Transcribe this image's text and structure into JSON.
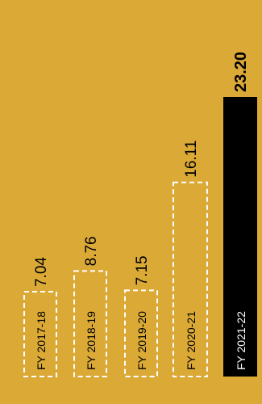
{
  "colors": {
    "background": "#DBA936",
    "highlight_bar": "#000000",
    "highlight_label": "#FFFFFF",
    "dashed_outline": "#FFFFFF",
    "text": "#000000"
  },
  "chart_data": {
    "type": "bar",
    "orientation": "vertical",
    "categories": [
      "FY 2017-18",
      "FY 2018-19",
      "FY 2019-20",
      "FY 2020-21",
      "FY 2021-22"
    ],
    "values": [
      7.04,
      8.76,
      7.15,
      16.11,
      23.2
    ],
    "value_labels": [
      "7.04",
      "8.76",
      "7.15",
      "16.11",
      "23.20"
    ],
    "highlight_index": 4,
    "ylim": [
      0,
      23.2
    ],
    "title": "",
    "xlabel": "",
    "ylabel": "",
    "grid": false,
    "category_labels_inside_bars": true,
    "labels_rotated": true
  }
}
